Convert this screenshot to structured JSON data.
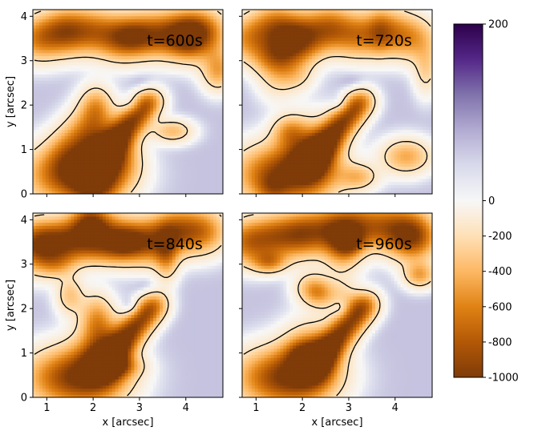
{
  "figure": {
    "x_label": "x [arcsec]",
    "y_label": "y [arcsec]"
  },
  "chart_data": {
    "type": "heatmap",
    "colormap": "PuOr",
    "colormap_stops": [
      "#7f3b08",
      "#b35806",
      "#e08214",
      "#fdb863",
      "#fee0b6",
      "#f7f7f7",
      "#d8daeb",
      "#b2abd2",
      "#8073ac",
      "#542788",
      "#2d004b"
    ],
    "contour_level": 0,
    "xlim": [
      0.7,
      4.8
    ],
    "ylim": [
      0,
      4.15
    ],
    "x_ticks": [
      1,
      2,
      3,
      4
    ],
    "y_ticks": [
      0,
      1,
      2,
      3,
      4
    ],
    "panels": [
      {
        "label": "t=600s",
        "show_y_label": true,
        "show_x_label": false
      },
      {
        "label": "t=720s",
        "show_y_label": false,
        "show_x_label": false
      },
      {
        "label": "t=840s",
        "show_y_label": true,
        "show_x_label": true
      },
      {
        "label": "t=960s",
        "show_y_label": false,
        "show_x_label": true
      }
    ],
    "colorbar": {
      "vmin": -1000,
      "vmax": 200,
      "ticks": [
        200,
        0,
        -200,
        -400,
        -600,
        -800,
        -1000
      ]
    }
  }
}
